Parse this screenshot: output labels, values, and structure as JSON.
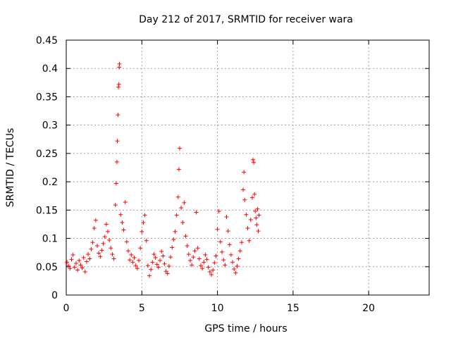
{
  "chart_data": {
    "type": "scatter",
    "title": "Day 212 of 2017, SRMTID for receiver wara",
    "xlabel": "GPS time / hours",
    "ylabel": "SRMTID / TECUs",
    "xlim": [
      0,
      24
    ],
    "ylim": [
      0,
      0.45
    ],
    "xticks": [
      "0",
      "5",
      "10",
      "15",
      "20"
    ],
    "xtick_values": [
      0,
      5,
      10,
      15,
      20
    ],
    "yticks": [
      "0",
      "0.05",
      "0.1",
      "0.15",
      "0.2",
      "0.25",
      "0.3",
      "0.35",
      "0.4",
      "0.45"
    ],
    "ytick_values": [
      0,
      0.05,
      0.1,
      0.15,
      0.2,
      0.25,
      0.3,
      0.35,
      0.4,
      0.45
    ],
    "grid": true,
    "marker": "+",
    "color": "#ff0000",
    "series": [
      {
        "name": "SRMTID",
        "points": [
          [
            0.05,
            0.058
          ],
          [
            0.15,
            0.052
          ],
          [
            0.25,
            0.047
          ],
          [
            0.35,
            0.063
          ],
          [
            0.45,
            0.071
          ],
          [
            0.55,
            0.049
          ],
          [
            0.65,
            0.056
          ],
          [
            0.75,
            0.044
          ],
          [
            0.85,
            0.061
          ],
          [
            0.95,
            0.053
          ],
          [
            1.05,
            0.048
          ],
          [
            1.15,
            0.066
          ],
          [
            1.25,
            0.041
          ],
          [
            1.35,
            0.059
          ],
          [
            1.45,
            0.072
          ],
          [
            1.55,
            0.064
          ],
          [
            1.65,
            0.081
          ],
          [
            1.75,
            0.093
          ],
          [
            1.85,
            0.118
          ],
          [
            1.95,
            0.132
          ],
          [
            2.05,
            0.087
          ],
          [
            2.15,
            0.074
          ],
          [
            2.25,
            0.068
          ],
          [
            2.35,
            0.079
          ],
          [
            2.45,
            0.091
          ],
          [
            2.55,
            0.103
          ],
          [
            2.65,
            0.125
          ],
          [
            2.75,
            0.112
          ],
          [
            2.85,
            0.097
          ],
          [
            2.95,
            0.083
          ],
          [
            3.05,
            0.072
          ],
          [
            3.15,
            0.064
          ],
          [
            3.25,
            0.159
          ],
          [
            3.3,
            0.197
          ],
          [
            3.35,
            0.235
          ],
          [
            3.38,
            0.272
          ],
          [
            3.42,
            0.318
          ],
          [
            3.45,
            0.367
          ],
          [
            3.48,
            0.372
          ],
          [
            3.5,
            0.402
          ],
          [
            3.52,
            0.408
          ],
          [
            3.6,
            0.142
          ],
          [
            3.7,
            0.128
          ],
          [
            3.8,
            0.115
          ],
          [
            3.9,
            0.164
          ],
          [
            4.0,
            0.094
          ],
          [
            4.1,
            0.078
          ],
          [
            4.2,
            0.062
          ],
          [
            4.3,
            0.071
          ],
          [
            4.4,
            0.058
          ],
          [
            4.5,
            0.066
          ],
          [
            4.6,
            0.052
          ],
          [
            4.7,
            0.047
          ],
          [
            4.8,
            0.061
          ],
          [
            4.9,
            0.083
          ],
          [
            5.0,
            0.112
          ],
          [
            5.1,
            0.128
          ],
          [
            5.2,
            0.141
          ],
          [
            5.3,
            0.096
          ],
          [
            5.4,
            0.052
          ],
          [
            5.5,
            0.034
          ],
          [
            5.6,
            0.045
          ],
          [
            5.7,
            0.058
          ],
          [
            5.8,
            0.072
          ],
          [
            5.9,
            0.066
          ],
          [
            6.0,
            0.054
          ],
          [
            6.1,
            0.049
          ],
          [
            6.2,
            0.061
          ],
          [
            6.3,
            0.077
          ],
          [
            6.4,
            0.069
          ],
          [
            6.5,
            0.055
          ],
          [
            6.6,
            0.042
          ],
          [
            6.7,
            0.038
          ],
          [
            6.8,
            0.051
          ],
          [
            6.9,
            0.067
          ],
          [
            7.0,
            0.084
          ],
          [
            7.1,
            0.098
          ],
          [
            7.2,
            0.112
          ],
          [
            7.3,
            0.141
          ],
          [
            7.4,
            0.173
          ],
          [
            7.45,
            0.222
          ],
          [
            7.5,
            0.259
          ],
          [
            7.6,
            0.154
          ],
          [
            7.7,
            0.128
          ],
          [
            7.8,
            0.163
          ],
          [
            7.9,
            0.104
          ],
          [
            8.0,
            0.087
          ],
          [
            8.1,
            0.072
          ],
          [
            8.2,
            0.061
          ],
          [
            8.3,
            0.053
          ],
          [
            8.4,
            0.067
          ],
          [
            8.5,
            0.078
          ],
          [
            8.6,
            0.146
          ],
          [
            8.7,
            0.083
          ],
          [
            8.8,
            0.064
          ],
          [
            8.9,
            0.052
          ],
          [
            9.0,
            0.047
          ],
          [
            9.1,
            0.058
          ],
          [
            9.2,
            0.071
          ],
          [
            9.3,
            0.063
          ],
          [
            9.4,
            0.049
          ],
          [
            9.5,
            0.041
          ],
          [
            9.6,
            0.036
          ],
          [
            9.7,
            0.044
          ],
          [
            9.8,
            0.057
          ],
          [
            9.9,
            0.069
          ],
          [
            10.0,
            0.116
          ],
          [
            10.1,
            0.148
          ],
          [
            10.2,
            0.094
          ],
          [
            10.3,
            0.076
          ],
          [
            10.4,
            0.062
          ],
          [
            10.5,
            0.053
          ],
          [
            10.6,
            0.138
          ],
          [
            10.7,
            0.113
          ],
          [
            10.8,
            0.089
          ],
          [
            10.9,
            0.071
          ],
          [
            11.0,
            0.058
          ],
          [
            11.1,
            0.046
          ],
          [
            11.2,
            0.039
          ],
          [
            11.3,
            0.051
          ],
          [
            11.4,
            0.064
          ],
          [
            11.5,
            0.078
          ],
          [
            11.6,
            0.093
          ],
          [
            11.7,
            0.186
          ],
          [
            11.75,
            0.217
          ],
          [
            11.8,
            0.168
          ],
          [
            11.9,
            0.142
          ],
          [
            12.0,
            0.118
          ],
          [
            12.1,
            0.096
          ],
          [
            12.2,
            0.133
          ],
          [
            12.3,
            0.172
          ],
          [
            12.35,
            0.239
          ],
          [
            12.4,
            0.234
          ],
          [
            12.45,
            0.178
          ],
          [
            12.5,
            0.148
          ],
          [
            12.55,
            0.136
          ],
          [
            12.6,
            0.124
          ],
          [
            12.65,
            0.152
          ],
          [
            12.7,
            0.113
          ],
          [
            12.75,
            0.141
          ]
        ]
      }
    ]
  }
}
